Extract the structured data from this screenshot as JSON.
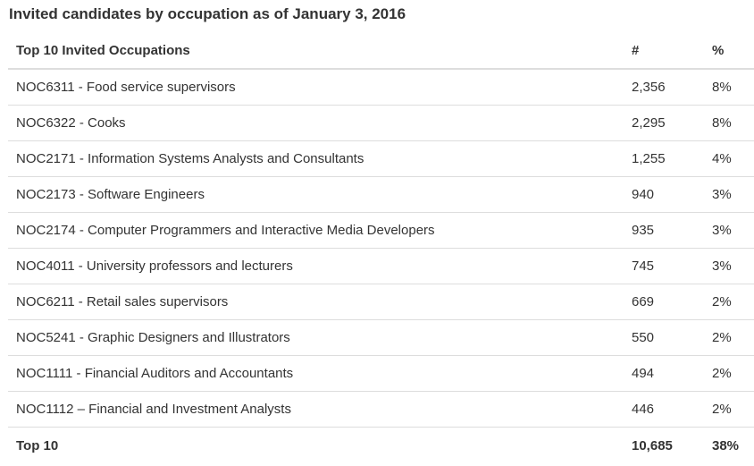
{
  "caption": "Invited candidates by occupation as of January 3, 2016",
  "table": {
    "headers": {
      "occupation": "Top 10 Invited Occupations",
      "count": "#",
      "percent": "%"
    },
    "rows": [
      {
        "occupation": "NOC6311 - Food service supervisors",
        "count": "2,356",
        "percent": "8%"
      },
      {
        "occupation": "NOC6322 - Cooks",
        "count": "2,295",
        "percent": "8%"
      },
      {
        "occupation": "NOC2171 - Information Systems Analysts and Consultants",
        "count": "1,255",
        "percent": "4%"
      },
      {
        "occupation": "NOC2173 - Software Engineers",
        "count": "940",
        "percent": "3%"
      },
      {
        "occupation": "NOC2174 - Computer Programmers and Interactive Media Developers",
        "count": "935",
        "percent": "3%"
      },
      {
        "occupation": "NOC4011 - University professors and lecturers",
        "count": "745",
        "percent": "3%"
      },
      {
        "occupation": "NOC6211 - Retail sales supervisors",
        "count": "669",
        "percent": "2%"
      },
      {
        "occupation": "NOC5241 - Graphic Designers and Illustrators",
        "count": "550",
        "percent": "2%"
      },
      {
        "occupation": "NOC1111 - Financial Auditors and Accountants",
        "count": "494",
        "percent": "2%"
      },
      {
        "occupation": "NOC1112 – Financial and Investment Analysts",
        "count": "446",
        "percent": "2%"
      }
    ],
    "total": {
      "label": "Top 10",
      "count": "10,685",
      "percent": "38%"
    }
  }
}
